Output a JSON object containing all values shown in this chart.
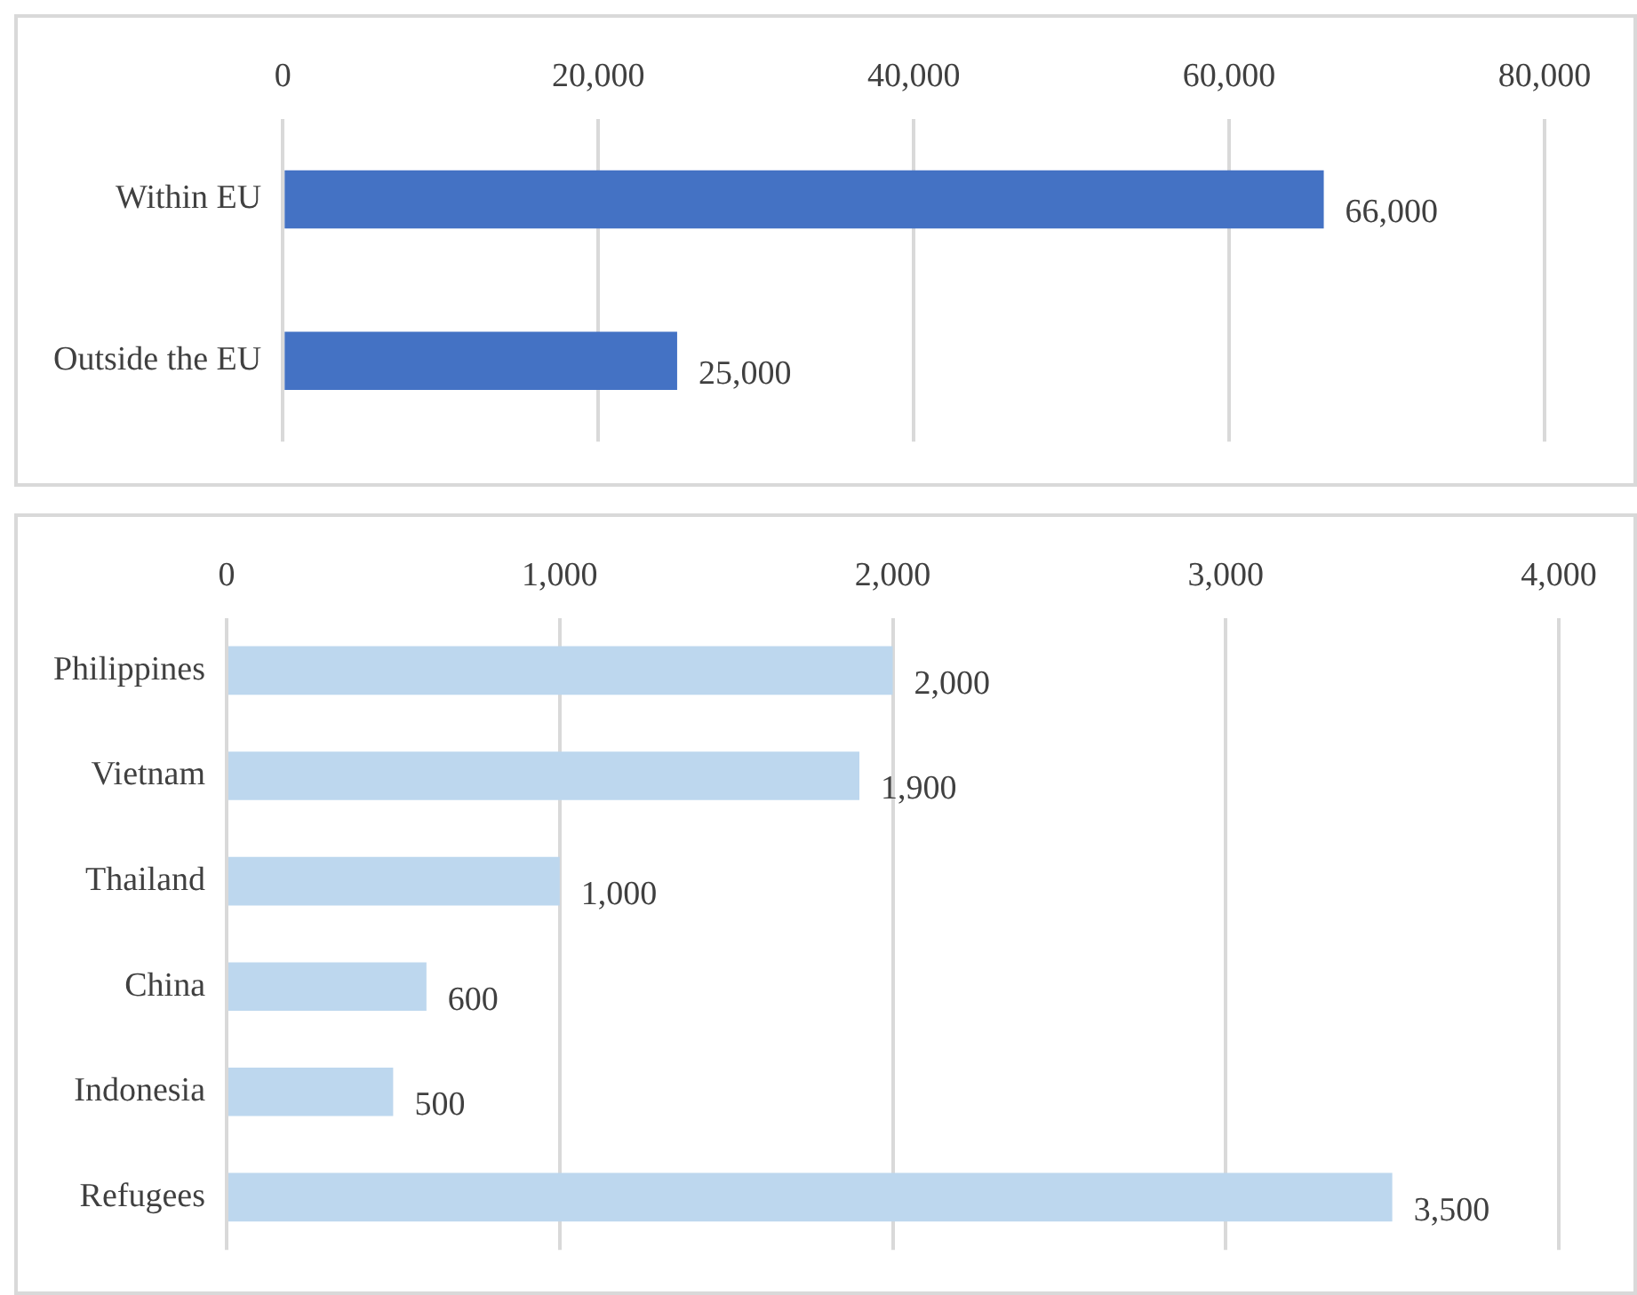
{
  "chart_data": [
    {
      "type": "bar",
      "orientation": "horizontal",
      "categories": [
        "Within EU",
        "Outside the EU"
      ],
      "values": [
        66000,
        25000
      ],
      "value_labels": [
        "66,000",
        "25,000"
      ],
      "color": "#4472c4",
      "xlim": [
        0,
        80000
      ],
      "xticks": [
        0,
        {
          "value": 20000,
          "label": "20,000"
        },
        {
          "value": 40000,
          "label": "40,000"
        },
        {
          "value": 60000,
          "label": "60,000"
        },
        {
          "value": 80000,
          "label": "80,000"
        }
      ],
      "grid": "x",
      "legend": false
    },
    {
      "type": "bar",
      "orientation": "horizontal",
      "categories": [
        "Philippines",
        "Vietnam",
        "Thailand",
        "China",
        "Indonesia",
        "Refugees"
      ],
      "values": [
        2000,
        1900,
        1000,
        600,
        500,
        3500
      ],
      "value_labels": [
        "2,000",
        "1,900",
        "1,000",
        "600",
        "500",
        "3,500"
      ],
      "color": "#bdd7ee",
      "xlim": [
        0,
        4000
      ],
      "xticks": [
        0,
        {
          "value": 1000,
          "label": "1,000"
        },
        {
          "value": 2000,
          "label": "2,000"
        },
        {
          "value": 3000,
          "label": "3,000"
        },
        {
          "value": 4000,
          "label": "4,000"
        }
      ],
      "grid": "x",
      "legend": false
    }
  ]
}
